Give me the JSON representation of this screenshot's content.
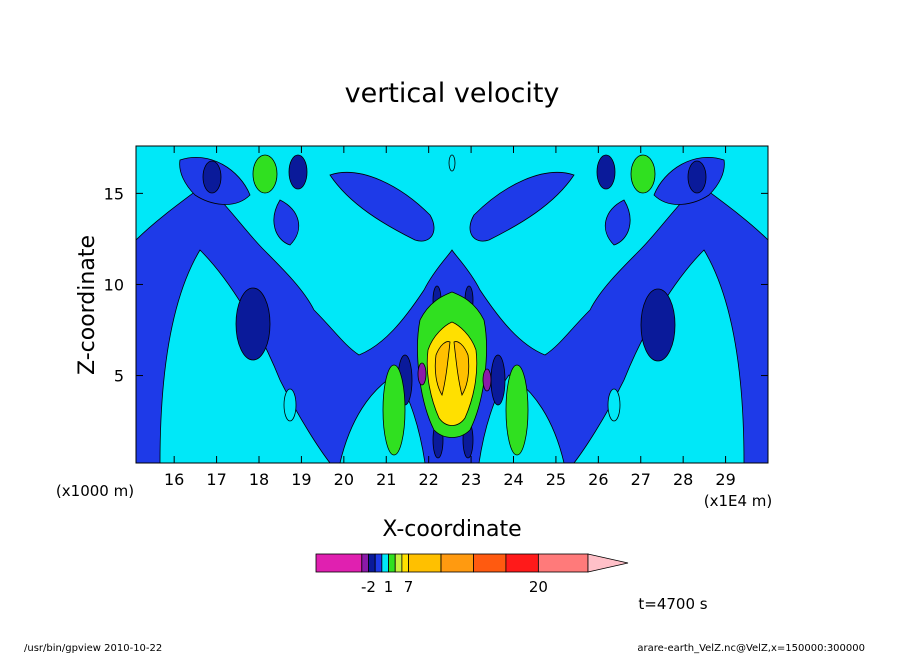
{
  "chart_data": {
    "type": "heatmap",
    "title": "vertical velocity",
    "xlabel": "X-coordinate",
    "ylabel": "Z-coordinate",
    "x_units_label": "(x1E4 m)",
    "y_units_label": "(x1000 m)",
    "xlim": [
      15.1,
      30.0
    ],
    "ylim": [
      0.2,
      17.6
    ],
    "xticks": [
      "16",
      "17",
      "18",
      "19",
      "20",
      "21",
      "22",
      "23",
      "24",
      "25",
      "26",
      "27",
      "28",
      "29"
    ],
    "xtick_values": [
      16,
      17,
      18,
      19,
      20,
      21,
      22,
      23,
      24,
      25,
      26,
      27,
      28,
      29
    ],
    "yticks": [
      "5",
      "10",
      "15"
    ],
    "ytick_values": [
      5,
      10,
      15
    ],
    "levels": [
      -10,
      -3,
      -2,
      -1,
      0,
      1,
      2,
      3,
      7,
      10,
      13,
      16,
      20,
      30
    ],
    "colorbar_colors": [
      "#e020b0",
      "#8b1aa8",
      "#0a1a9a",
      "#1e3ae8",
      "#00e8f8",
      "#30e020",
      "#c8f040",
      "#ffe000",
      "#ffc000",
      "#ff9a10",
      "#ff5a10",
      "#ff1a1a",
      "#ff7a7a",
      "#ffc0c8"
    ],
    "colorbar_labels": [
      "-2",
      "1",
      "7",
      "20"
    ],
    "colorbar_label_values": [
      -2,
      1,
      7,
      20
    ],
    "time_label": "t=4700 s",
    "timestamp": "/usr/bin/gpview  2010-10-22",
    "source": "arare-earth_VelZ.nc@VelZ,x=150000:300000"
  }
}
